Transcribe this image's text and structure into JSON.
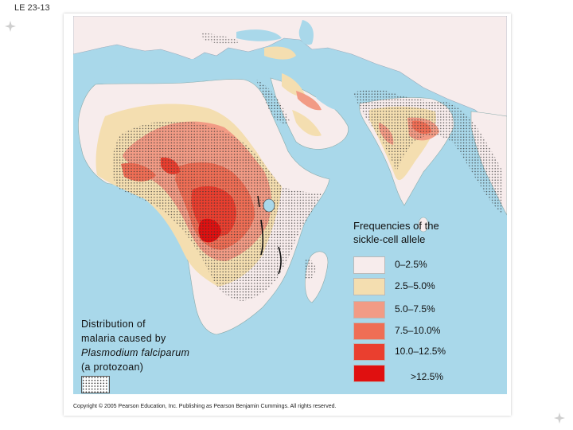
{
  "slide_label": "LE 23-13",
  "legend": {
    "title_line1": "Frequencies of the",
    "title_line2": "sickle-cell allele",
    "items": [
      {
        "label": "0–2.5%",
        "color": "#f7ecec"
      },
      {
        "label": "2.5–5.0%",
        "color": "#f4deb0"
      },
      {
        "label": "5.0–7.5%",
        "color": "#f29b85"
      },
      {
        "label": "7.5–10.0%",
        "color": "#ef6e55"
      },
      {
        "label": "10.0–12.5%",
        "color": "#ea3f2f"
      },
      {
        "label": ">12.5%",
        "color": "#e01010"
      }
    ]
  },
  "malaria": {
    "line1": "Distribution of",
    "line2": "malaria caused by",
    "line3": "Plasmodium falciparum",
    "line4": "(a protozoan)"
  },
  "copyright": "Copyright © 2005 Pearson Education, Inc. Publishing as Pearson Benjamin Cummings. All rights reserved.",
  "colors": {
    "ocean": "#a9d8ea",
    "land": "#f7ecec"
  }
}
